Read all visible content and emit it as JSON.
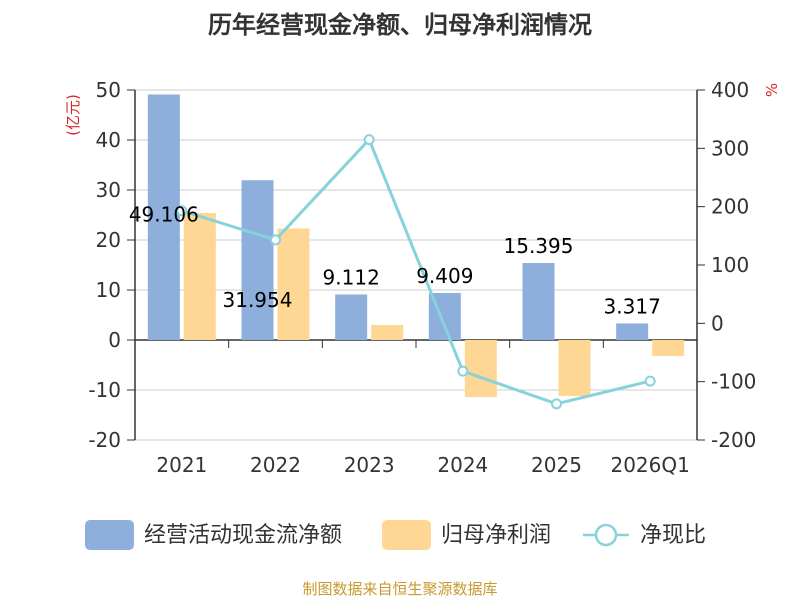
{
  "chart_data": {
    "type": "bar",
    "title": "历年经营现金净额、归母净利润情况",
    "categories": [
      "2021",
      "2022",
      "2023",
      "2024",
      "2025",
      "2026Q1"
    ],
    "y_left_unit": "(亿元)",
    "y_right_unit": "%",
    "ylim_left": [
      -20,
      50
    ],
    "ylim_right": [
      -200,
      400
    ],
    "y_left_ticks": [
      50,
      40,
      30,
      20,
      10,
      0,
      -10,
      -20
    ],
    "y_right_ticks": [
      400,
      300,
      200,
      100,
      0,
      -100,
      -200
    ],
    "series": [
      {
        "name": "经营活动现金流净额",
        "type": "bar",
        "axis": "left",
        "color": "#8eaedb",
        "values": [
          49.106,
          31.954,
          9.112,
          9.409,
          15.395,
          3.317
        ],
        "labels": [
          "49.106",
          "31.954",
          "9.112",
          "9.409",
          "15.395",
          "3.317"
        ]
      },
      {
        "name": "归母净利润",
        "type": "bar",
        "axis": "left",
        "color": "#fed795",
        "values": [
          25.4,
          22.3,
          3.0,
          -11.4,
          -11.2,
          -3.2
        ]
      },
      {
        "name": "净现比",
        "type": "line",
        "axis": "right",
        "color": "#86d3d9",
        "values": [
          193,
          143,
          315,
          -82,
          -138,
          -99
        ]
      }
    ],
    "source": "制图数据来自恒生聚源数据库"
  }
}
